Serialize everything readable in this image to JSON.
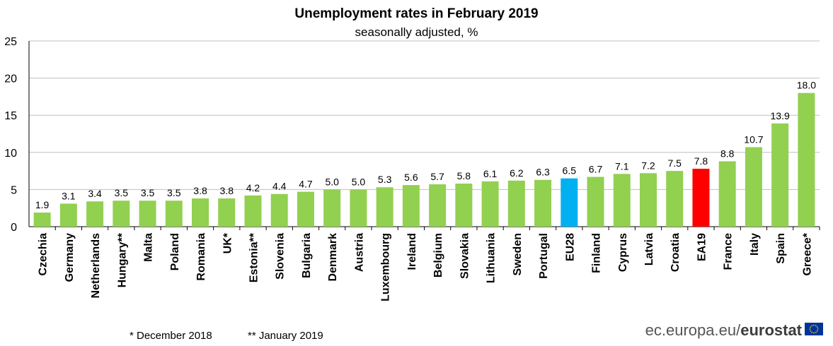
{
  "title": "Unemployment rates in February 2019",
  "subtitle": "seasonally adjusted, %",
  "footnotes": [
    "*  December 2018",
    "** January 2019"
  ],
  "source": {
    "domain": "ec.europa.eu/",
    "brand": "eurostat"
  },
  "colors": {
    "default": "#92d050",
    "eu28": "#00b0f0",
    "ea19": "#ff0000",
    "grid": "#bfbfbf"
  },
  "chart_data": {
    "type": "bar",
    "title": "Unemployment rates in February 2019",
    "subtitle": "seasonally adjusted, %",
    "xlabel": "",
    "ylabel": "",
    "ylim": [
      0,
      25
    ],
    "yticks": [
      0,
      5,
      10,
      15,
      20,
      25
    ],
    "grid": true,
    "categories": [
      "Czechia",
      "Germany",
      "Netherlands",
      "Hungary**",
      "Malta",
      "Poland",
      "Romania",
      "UK*",
      "Estonia**",
      "Slovenia",
      "Bulgaria",
      "Denmark",
      "Austria",
      "Luxembourg",
      "Ireland",
      "Belgium",
      "Slovakia",
      "Lithuania",
      "Sweden",
      "Portugal",
      "EU28",
      "Finland",
      "Cyprus",
      "Latvia",
      "Croatia",
      "EA19",
      "France",
      "Italy",
      "Spain",
      "Greece*"
    ],
    "values": [
      1.9,
      3.1,
      3.4,
      3.5,
      3.5,
      3.5,
      3.8,
      3.8,
      4.2,
      4.4,
      4.7,
      5.0,
      5.0,
      5.3,
      5.6,
      5.7,
      5.8,
      6.1,
      6.2,
      6.3,
      6.5,
      6.7,
      7.1,
      7.2,
      7.5,
      7.8,
      8.8,
      10.7,
      13.9,
      18.0
    ],
    "value_labels": [
      "1.9",
      "3.1",
      "3.4",
      "3.5",
      "3.5",
      "3.5",
      "3.8",
      "3.8",
      "4.2",
      "4.4",
      "4.7",
      "5.0",
      "5.0",
      "5.3",
      "5.6",
      "5.7",
      "5.8",
      "6.1",
      "6.2",
      "6.3",
      "6.5",
      "6.7",
      "7.1",
      "7.2",
      "7.5",
      "7.8",
      "8.8",
      "10.7",
      "13.9",
      "18.0"
    ],
    "highlight": {
      "EU28": "#00b0f0",
      "EA19": "#ff0000"
    }
  }
}
